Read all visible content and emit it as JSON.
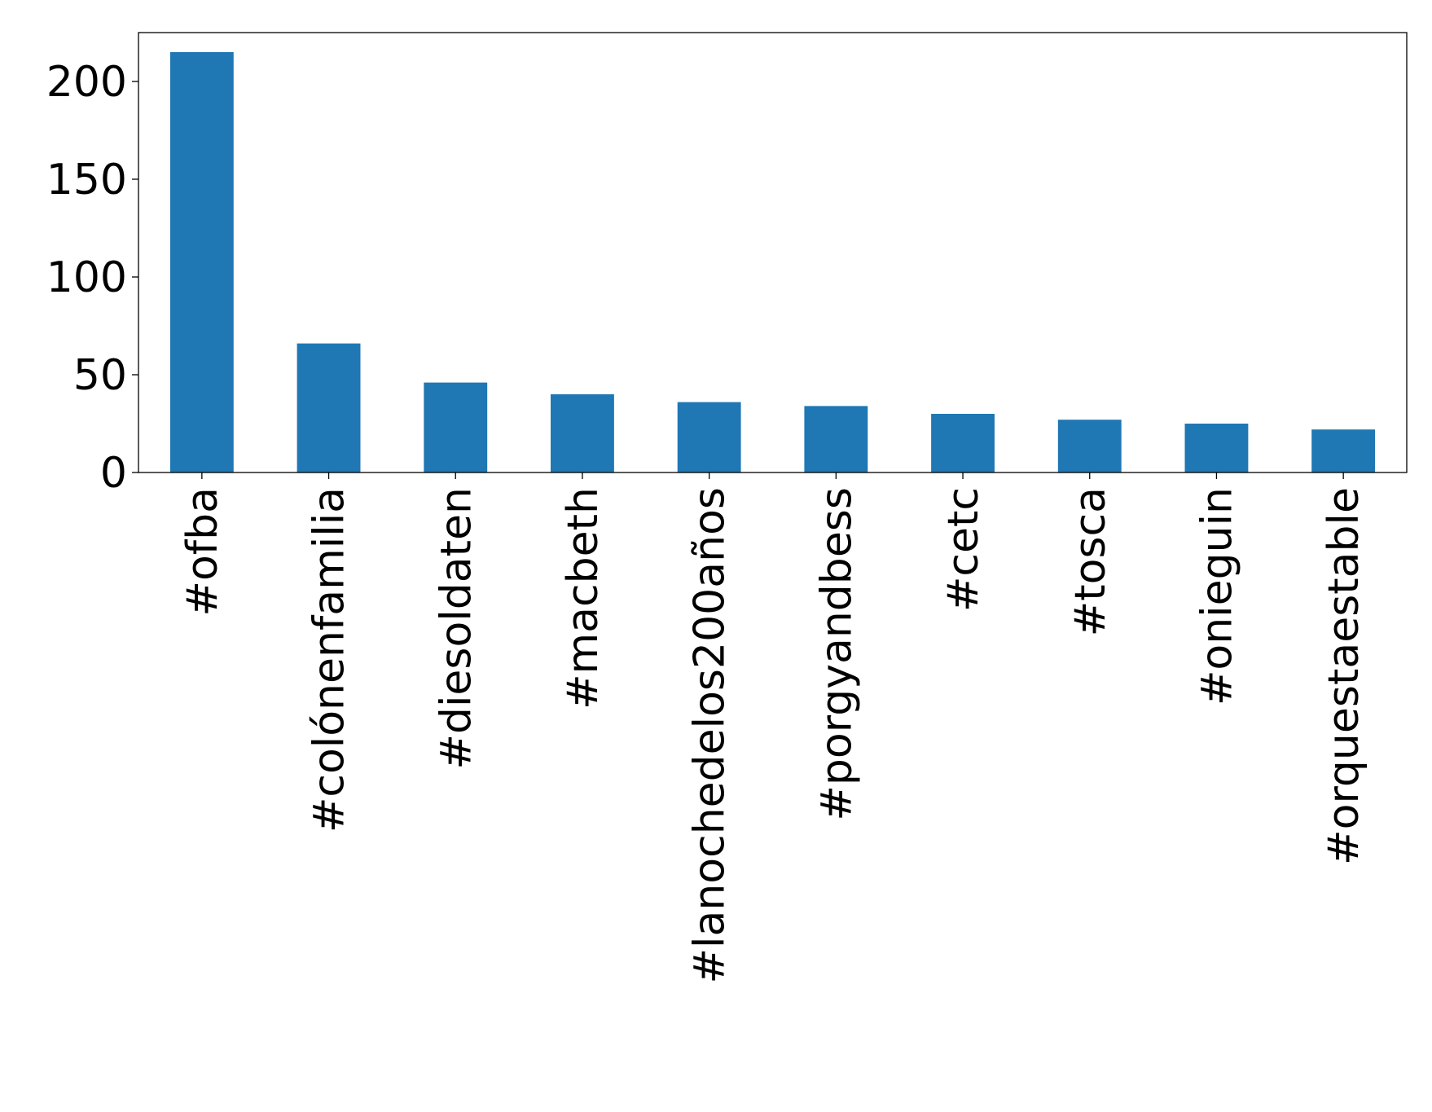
{
  "chart_data": {
    "type": "bar",
    "categories": [
      "#ofba",
      "#colónenfamilia",
      "#diesoldaten",
      "#macbeth",
      "#lanochedelos200años",
      "#porgyandbess",
      "#cetc",
      "#tosca",
      "#onieguin",
      "#orquestaestable"
    ],
    "values": [
      215,
      66,
      46,
      40,
      36,
      34,
      30,
      27,
      25,
      22
    ],
    "title": "",
    "xlabel": "",
    "ylabel": "",
    "ylim": [
      0,
      225
    ],
    "yticks": [
      0,
      50,
      100,
      150,
      200
    ],
    "bar_color": "#1f77b4",
    "grid": false,
    "legend": false
  }
}
